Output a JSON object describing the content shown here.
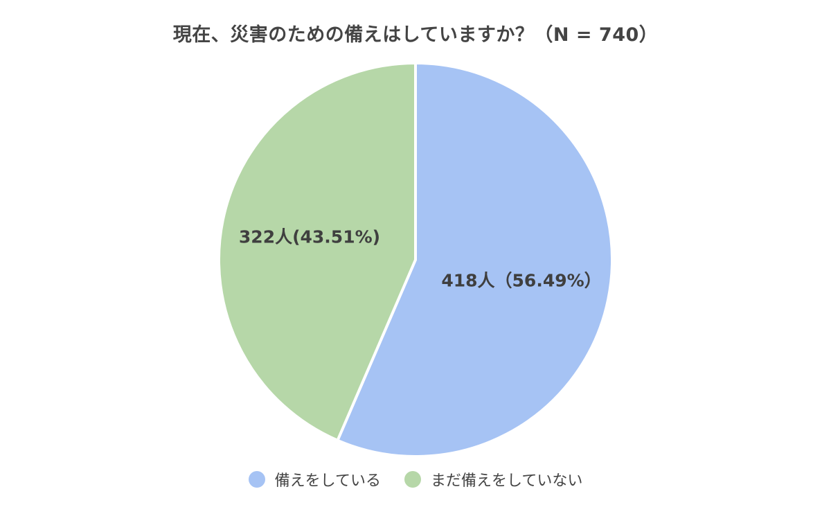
{
  "chart_data": {
    "type": "pie",
    "title": "現在、災害のための備えはしていますか？（N = 740）",
    "slices": [
      {
        "name": "備えをしている",
        "value": 418,
        "percent": 56.49,
        "label": "418人（56.49%）",
        "color": "#a6c3f4"
      },
      {
        "name": "まだ備えをしていない",
        "value": 322,
        "percent": 43.51,
        "label": "322人(43.51%)",
        "color": "#b6d7a8"
      }
    ],
    "total": 740,
    "start_angle": "12 o'clock",
    "direction": "clockwise",
    "legend": "bottom"
  }
}
